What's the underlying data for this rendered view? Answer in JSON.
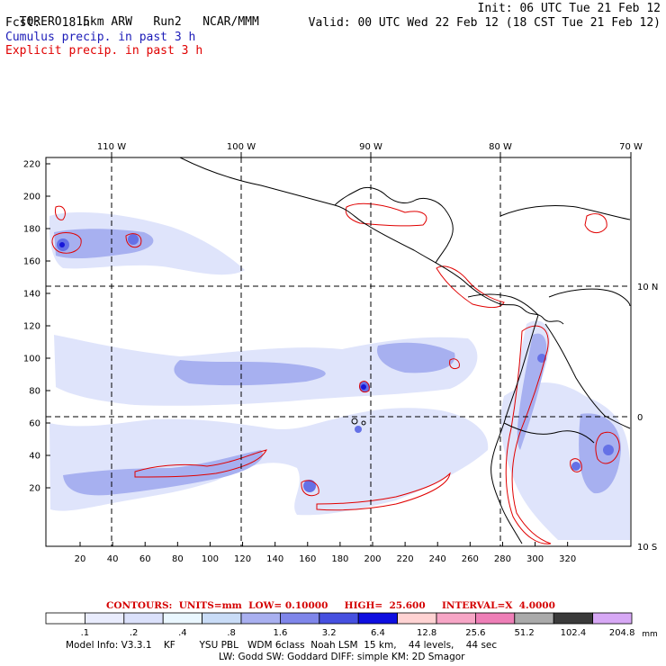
{
  "header": {
    "model": "TORERO",
    "resolution": "15km ARW",
    "run": "Run2",
    "org": "NCAR/MMM",
    "init": "Init: 06 UTC Tue 21 Feb 12",
    "fcst_label": "Fcst:",
    "fcst_value": "18 h",
    "valid": "Valid: 00 UTC Wed 22 Feb 12 (18 CST Tue 21 Feb 12)",
    "line1": "Cumulus precip. in past 3 h",
    "line2": "Explicit precip. in past 3 h"
  },
  "map": {
    "top_lon_labels": [
      "110 W",
      "100 W",
      "90 W",
      "80 W",
      "70 W"
    ],
    "right_lat_labels": [
      "10 N",
      "0",
      "10 S"
    ],
    "left_grid_labels": [
      "220",
      "200",
      "180",
      "160",
      "140",
      "120",
      "100",
      "80",
      "60",
      "40",
      "20"
    ],
    "bottom_grid_labels": [
      "20",
      "40",
      "60",
      "80",
      "100",
      "120",
      "140",
      "160",
      "180",
      "200",
      "220",
      "240",
      "260",
      "280",
      "300",
      "320"
    ],
    "colors": {
      "coast": "#000000",
      "explicit": "#e00000",
      "light": "#dfe4fb",
      "mid": "#a7b0f0",
      "strong": "#6571e6",
      "deep": "#1717d9"
    }
  },
  "contour_info": {
    "text": "CONTOURS:  UNITS=mm  LOW= 0.10000     HIGH=  25.600     INTERVAL=X  4.0000"
  },
  "colorbar": {
    "labels": [
      ".1",
      ".2",
      ".4",
      ".8",
      "1.6",
      "3.2",
      "6.4",
      "12.8",
      "25.6",
      "51.2",
      "102.4",
      "204.8"
    ],
    "unit": "mm",
    "colors": [
      "#ffffff",
      "#e9ecfd",
      "#dbe1fb",
      "#eaf7ff",
      "#c9dcf7",
      "#a9b0f0",
      "#7f86ea",
      "#4650e0",
      "#0e0ee0",
      "#ffd3d3",
      "#f7a6c6",
      "#ee7fb7",
      "#aaaaaa",
      "#3a3a3a",
      "#d7a8f5"
    ]
  },
  "model_info": {
    "line1": "Model Info: V3.3.1    KF        YSU PBL   WDM 6class  Noah LSM  15 km,    44 levels,    44 sec",
    "line2": "LW: Godd SW: Goddard DIFF: simple KM: 2D Smagor"
  }
}
